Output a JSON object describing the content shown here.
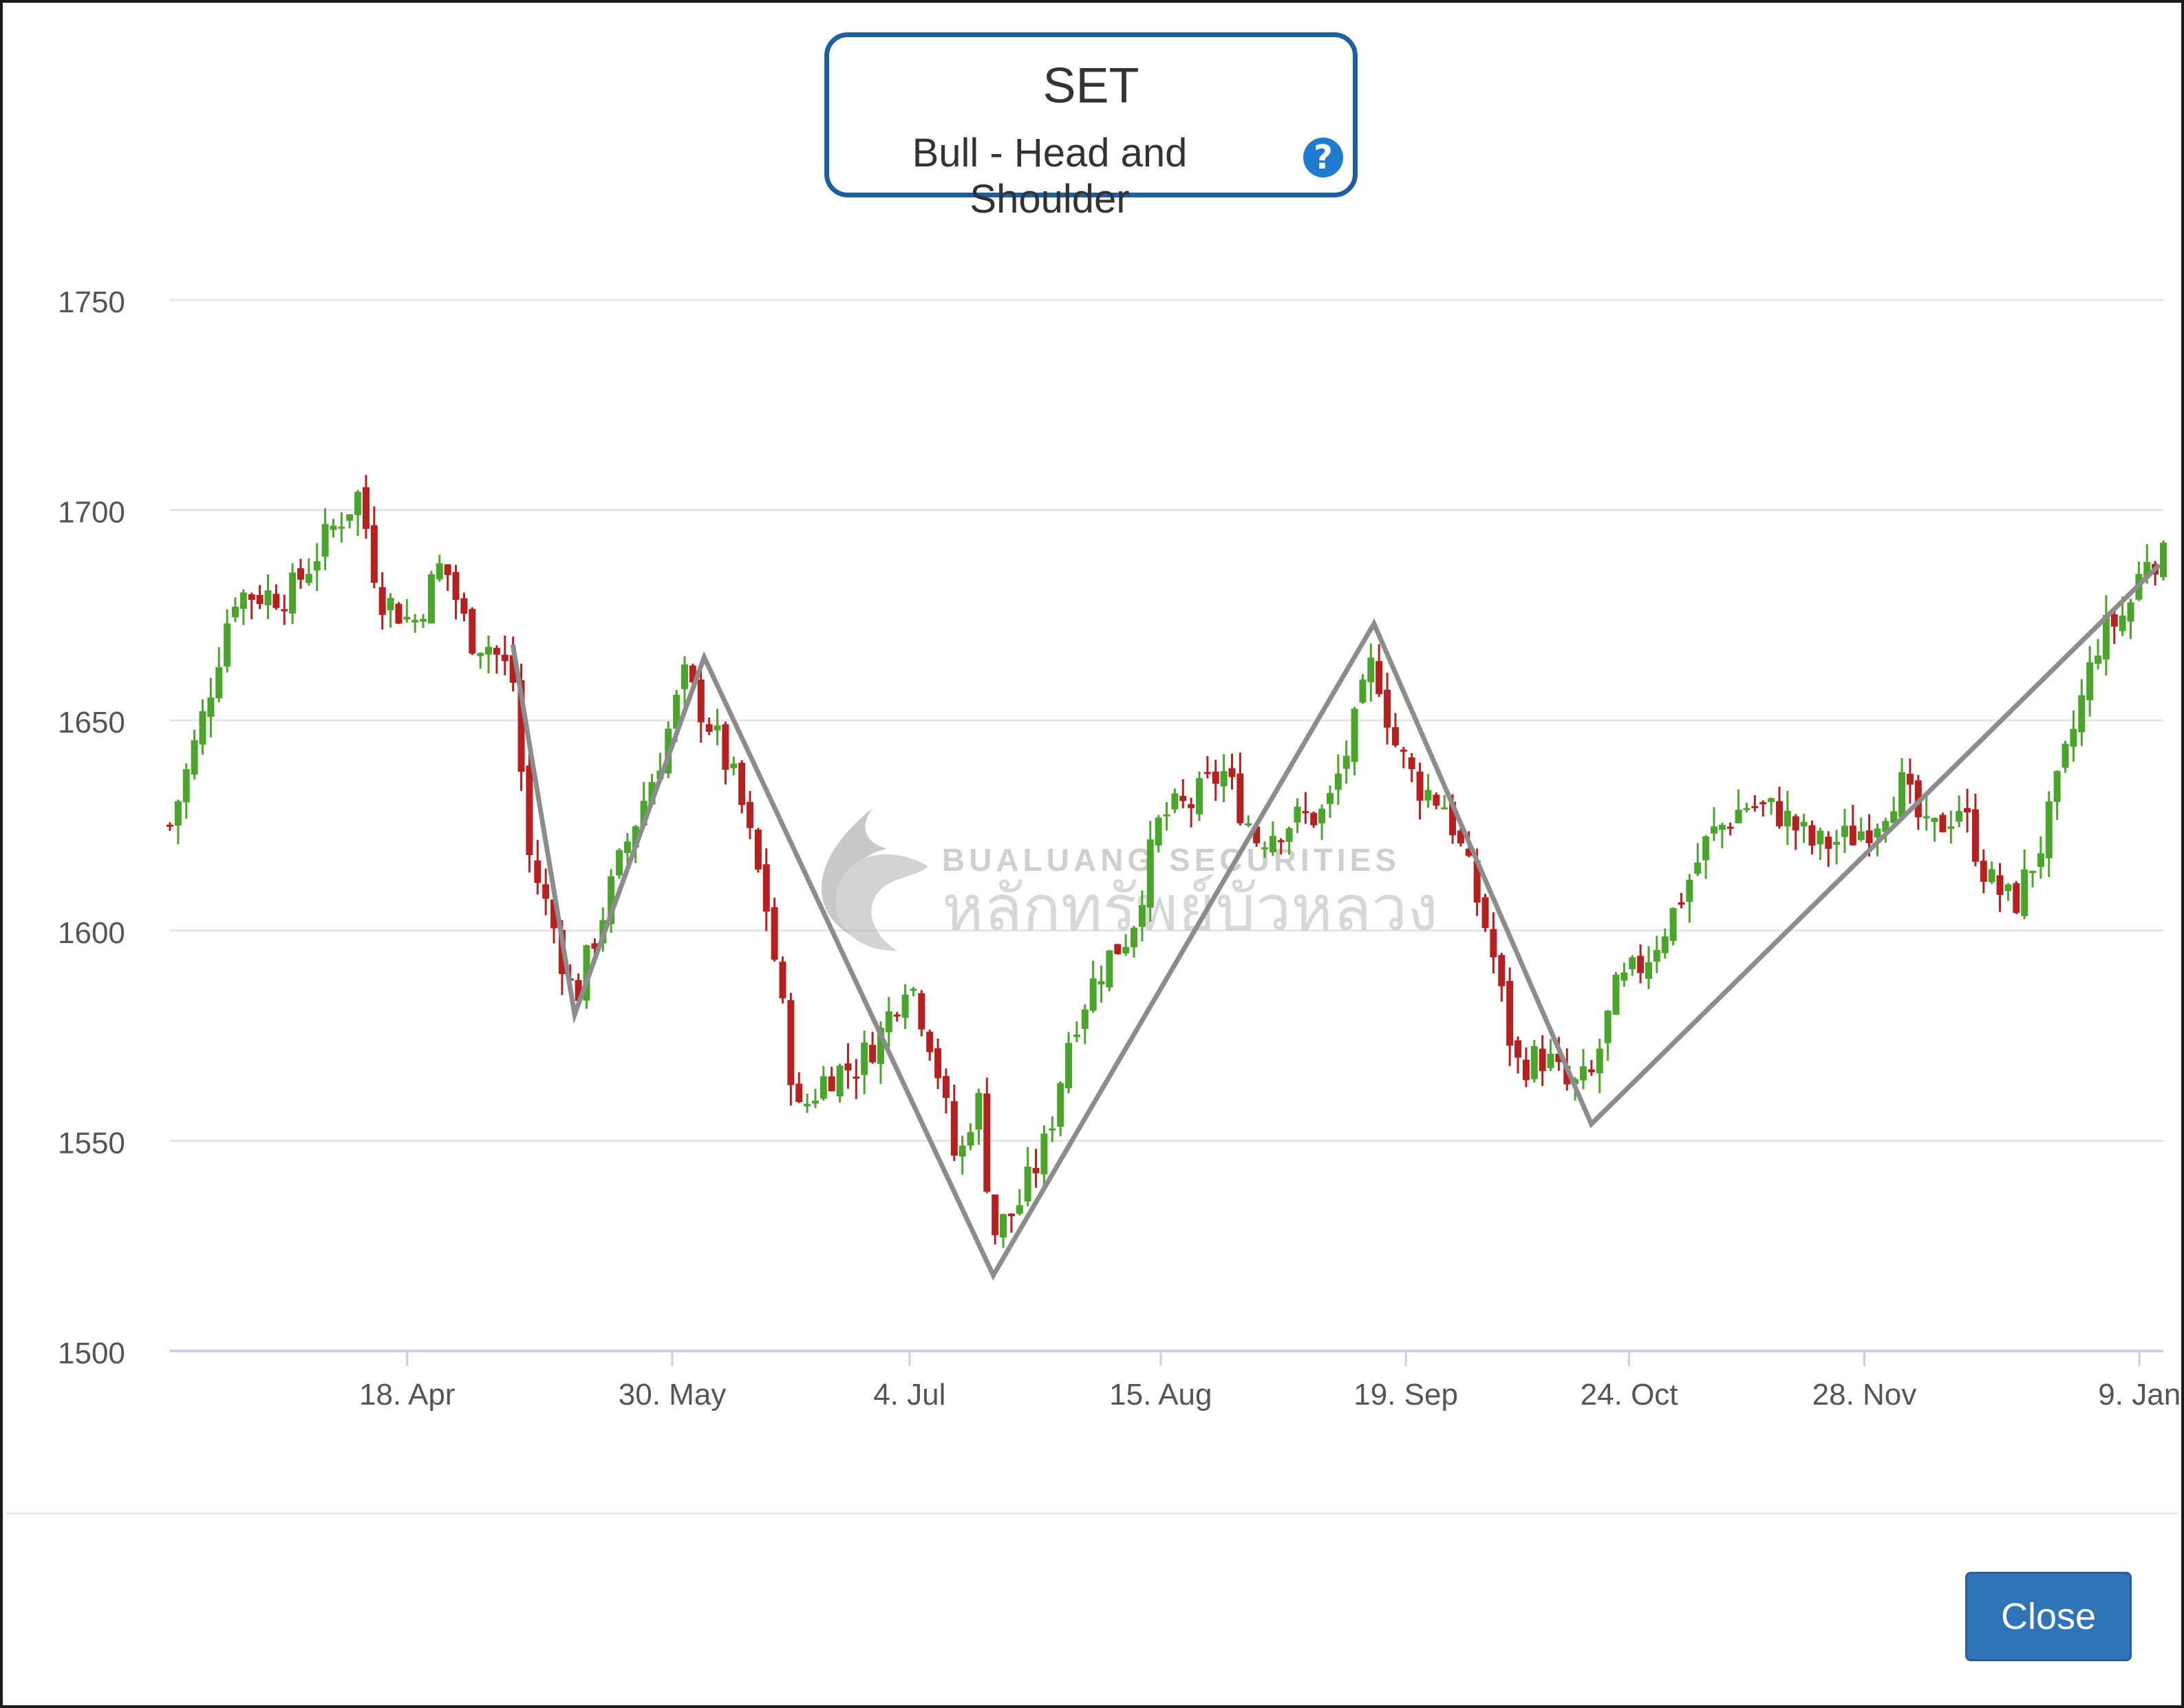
{
  "title_box": {
    "title": "SET",
    "subtitle": "Bull - Head and Shoulder",
    "help_icon": "question-circle-icon"
  },
  "watermark": {
    "text_en": "BUALUANG SECURITIES",
    "text_th": "หลักทรัพย์บัวหลวง"
  },
  "chart_data": {
    "type": "candlestick",
    "y_ticks": [
      "1750",
      "1700",
      "1650",
      "1600",
      "1550",
      "1500"
    ],
    "ylim": [
      1500,
      1750
    ],
    "x_ticks": [
      {
        "label": "18. Apr",
        "t": 0.119
      },
      {
        "label": "30. May",
        "t": 0.252
      },
      {
        "label": "4. Jul",
        "t": 0.371
      },
      {
        "label": "15. Aug",
        "t": 0.497
      },
      {
        "label": "19. Sep",
        "t": 0.62
      },
      {
        "label": "24. Oct",
        "t": 0.732
      },
      {
        "label": "28. Nov",
        "t": 0.85
      },
      {
        "label": "9. Jan",
        "t": 0.988
      }
    ],
    "colors": {
      "up": "#4aa62b",
      "down": "#b81f1f",
      "pattern_line": "#8c8c8c",
      "grid": "#e6e6e6"
    },
    "pattern_points": [
      {
        "t": 0.172,
        "v": 1668
      },
      {
        "t": 0.203,
        "v": 1580
      },
      {
        "t": 0.268,
        "v": 1665
      },
      {
        "t": 0.413,
        "v": 1518
      },
      {
        "t": 0.604,
        "v": 1673
      },
      {
        "t": 0.713,
        "v": 1554
      },
      {
        "t": 0.998,
        "v": 1687
      }
    ],
    "anchors": [
      {
        "t": 0.0,
        "v": 1625
      },
      {
        "t": 0.015,
        "v": 1648
      },
      {
        "t": 0.032,
        "v": 1680
      },
      {
        "t": 0.06,
        "v": 1680
      },
      {
        "t": 0.085,
        "v": 1698
      },
      {
        "t": 0.095,
        "v": 1704
      },
      {
        "t": 0.105,
        "v": 1680
      },
      {
        "t": 0.122,
        "v": 1673
      },
      {
        "t": 0.137,
        "v": 1688
      },
      {
        "t": 0.15,
        "v": 1670
      },
      {
        "t": 0.16,
        "v": 1668
      },
      {
        "t": 0.172,
        "v": 1660
      },
      {
        "t": 0.18,
        "v": 1618
      },
      {
        "t": 0.193,
        "v": 1600
      },
      {
        "t": 0.203,
        "v": 1583
      },
      {
        "t": 0.212,
        "v": 1597
      },
      {
        "t": 0.23,
        "v": 1622
      },
      {
        "t": 0.245,
        "v": 1640
      },
      {
        "t": 0.258,
        "v": 1660
      },
      {
        "t": 0.272,
        "v": 1648
      },
      {
        "t": 0.285,
        "v": 1633
      },
      {
        "t": 0.3,
        "v": 1604
      },
      {
        "t": 0.315,
        "v": 1556
      },
      {
        "t": 0.33,
        "v": 1566
      },
      {
        "t": 0.345,
        "v": 1568
      },
      {
        "t": 0.357,
        "v": 1576
      },
      {
        "t": 0.37,
        "v": 1590
      },
      {
        "t": 0.383,
        "v": 1572
      },
      {
        "t": 0.395,
        "v": 1543
      },
      {
        "t": 0.405,
        "v": 1562
      },
      {
        "t": 0.413,
        "v": 1528
      },
      {
        "t": 0.425,
        "v": 1534
      },
      {
        "t": 0.44,
        "v": 1550
      },
      {
        "t": 0.452,
        "v": 1577
      },
      {
        "t": 0.468,
        "v": 1592
      },
      {
        "t": 0.482,
        "v": 1600
      },
      {
        "t": 0.497,
        "v": 1627
      },
      {
        "t": 0.512,
        "v": 1630
      },
      {
        "t": 0.528,
        "v": 1638
      },
      {
        "t": 0.545,
        "v": 1622
      },
      {
        "t": 0.562,
        "v": 1626
      },
      {
        "t": 0.58,
        "v": 1628
      },
      {
        "t": 0.594,
        "v": 1648
      },
      {
        "t": 0.604,
        "v": 1665
      },
      {
        "t": 0.614,
        "v": 1645
      },
      {
        "t": 0.625,
        "v": 1635
      },
      {
        "t": 0.64,
        "v": 1630
      },
      {
        "t": 0.652,
        "v": 1613
      },
      {
        "t": 0.662,
        "v": 1598
      },
      {
        "t": 0.675,
        "v": 1568
      },
      {
        "t": 0.69,
        "v": 1570
      },
      {
        "t": 0.702,
        "v": 1562
      },
      {
        "t": 0.713,
        "v": 1565
      },
      {
        "t": 0.725,
        "v": 1585
      },
      {
        "t": 0.74,
        "v": 1593
      },
      {
        "t": 0.755,
        "v": 1605
      },
      {
        "t": 0.772,
        "v": 1622
      },
      {
        "t": 0.79,
        "v": 1630
      },
      {
        "t": 0.808,
        "v": 1628
      },
      {
        "t": 0.825,
        "v": 1620
      },
      {
        "t": 0.842,
        "v": 1622
      },
      {
        "t": 0.855,
        "v": 1626
      },
      {
        "t": 0.868,
        "v": 1635
      },
      {
        "t": 0.882,
        "v": 1622
      },
      {
        "t": 0.898,
        "v": 1630
      },
      {
        "t": 0.912,
        "v": 1612
      },
      {
        "t": 0.925,
        "v": 1606
      },
      {
        "t": 0.94,
        "v": 1622
      },
      {
        "t": 0.955,
        "v": 1648
      },
      {
        "t": 0.968,
        "v": 1670
      },
      {
        "t": 0.982,
        "v": 1676
      },
      {
        "t": 0.992,
        "v": 1690
      },
      {
        "t": 1.0,
        "v": 1688
      }
    ]
  },
  "footer": {
    "close_label": "Close"
  }
}
